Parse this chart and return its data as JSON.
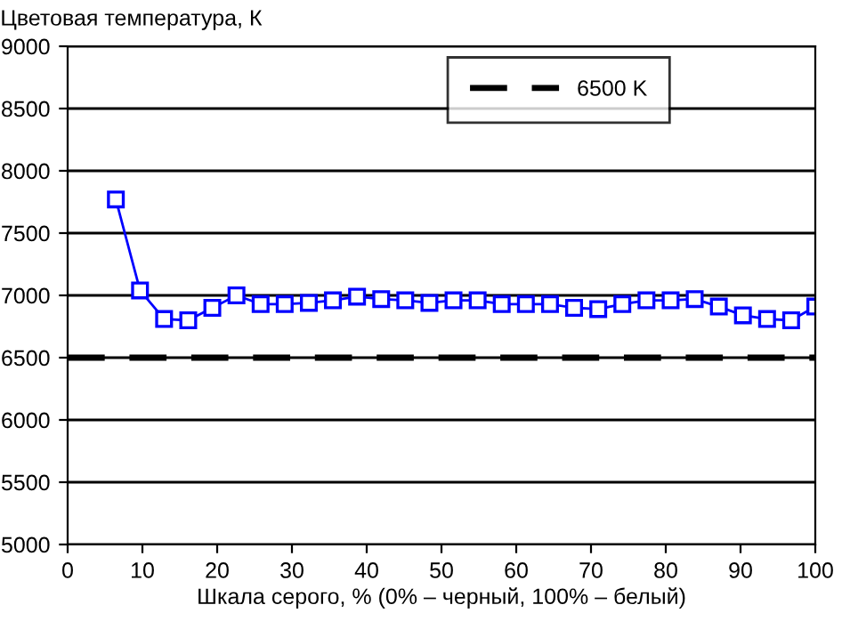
{
  "chart_data": {
    "type": "line",
    "ylabel": "Цветовая температура, К",
    "xlabel": "Шкала серого, % (0% – черный, 100% – белый)",
    "x": [
      6.45,
      9.68,
      12.9,
      16.13,
      19.35,
      22.58,
      25.81,
      29.03,
      32.26,
      35.48,
      38.71,
      41.94,
      45.16,
      48.39,
      51.61,
      54.84,
      58.06,
      61.29,
      64.52,
      67.74,
      70.97,
      74.19,
      77.42,
      80.65,
      83.87,
      87.1,
      90.32,
      93.55,
      96.77,
      100
    ],
    "series": [
      {
        "color": "#0000ff",
        "values": [
          7770,
          7040,
          6810,
          6800,
          6900,
          7000,
          6930,
          6930,
          6940,
          6960,
          6990,
          6970,
          6960,
          6940,
          6960,
          6960,
          6930,
          6930,
          6930,
          6900,
          6890,
          6930,
          6960,
          6960,
          6970,
          6910,
          6840,
          6810,
          6800,
          6910
        ]
      }
    ],
    "marker": "square",
    "line_style": "solid",
    "ref_lines": [
      {
        "axis": "y",
        "value": 6500,
        "label": "6500 K",
        "color": "#000000",
        "line_style": "dashed"
      }
    ],
    "xlim": [
      0,
      100
    ],
    "xticks": [
      0,
      10,
      20,
      30,
      40,
      50,
      60,
      70,
      80,
      90,
      100
    ],
    "ylim": [
      5000,
      9000
    ],
    "yticks": [
      5000,
      5500,
      6000,
      6500,
      7000,
      7500,
      8000,
      8500,
      9000
    ],
    "grid": "y",
    "legend": "top right"
  }
}
